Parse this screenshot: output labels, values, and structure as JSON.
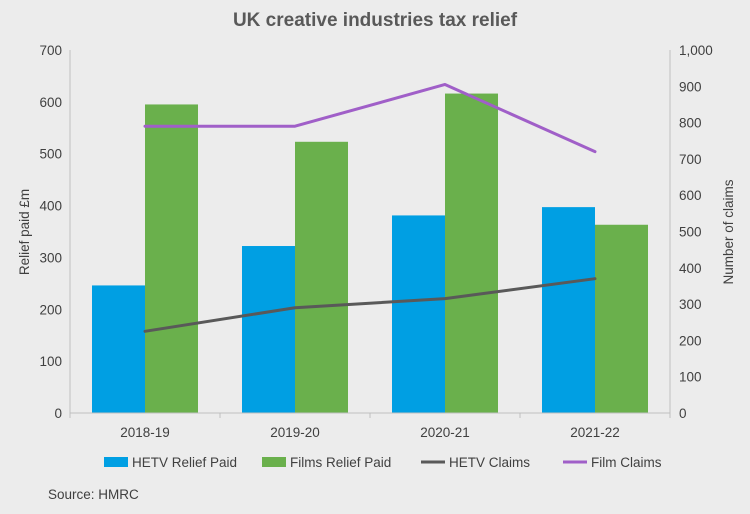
{
  "chart_data": {
    "type": "bar",
    "title": "UK creative industries tax relief",
    "ylabel": "Relief paid £m",
    "y2label": "Number of claims",
    "ylim": [
      0,
      700
    ],
    "y2lim": [
      0,
      1000
    ],
    "yticks": [
      "0",
      "100",
      "200",
      "300",
      "400",
      "500",
      "600",
      "700"
    ],
    "y2ticks": [
      "0",
      "100",
      "200",
      "300",
      "400",
      "500",
      "600",
      "700",
      "800",
      "900",
      "1,000"
    ],
    "categories": [
      "2018-19",
      "2019-20",
      "2020-21",
      "2021-22"
    ],
    "grid": false,
    "legend_position": "bottom",
    "series": [
      {
        "name": "HETV Relief Paid",
        "type": "bar",
        "axis": "left",
        "color": "#009fe3",
        "values": [
          246,
          322,
          381,
          397
        ]
      },
      {
        "name": "Films Relief Paid",
        "type": "bar",
        "axis": "left",
        "color": "#6ab04c",
        "values": [
          595,
          523,
          616,
          363
        ]
      },
      {
        "name": "HETV Claims",
        "type": "line",
        "axis": "right",
        "color": "#595959",
        "values": [
          225,
          290,
          315,
          370
        ]
      },
      {
        "name": "Film Claims",
        "type": "line",
        "axis": "right",
        "color": "#a05fc8",
        "values": [
          790,
          790,
          905,
          720
        ]
      }
    ],
    "source": "Source: HMRC"
  }
}
